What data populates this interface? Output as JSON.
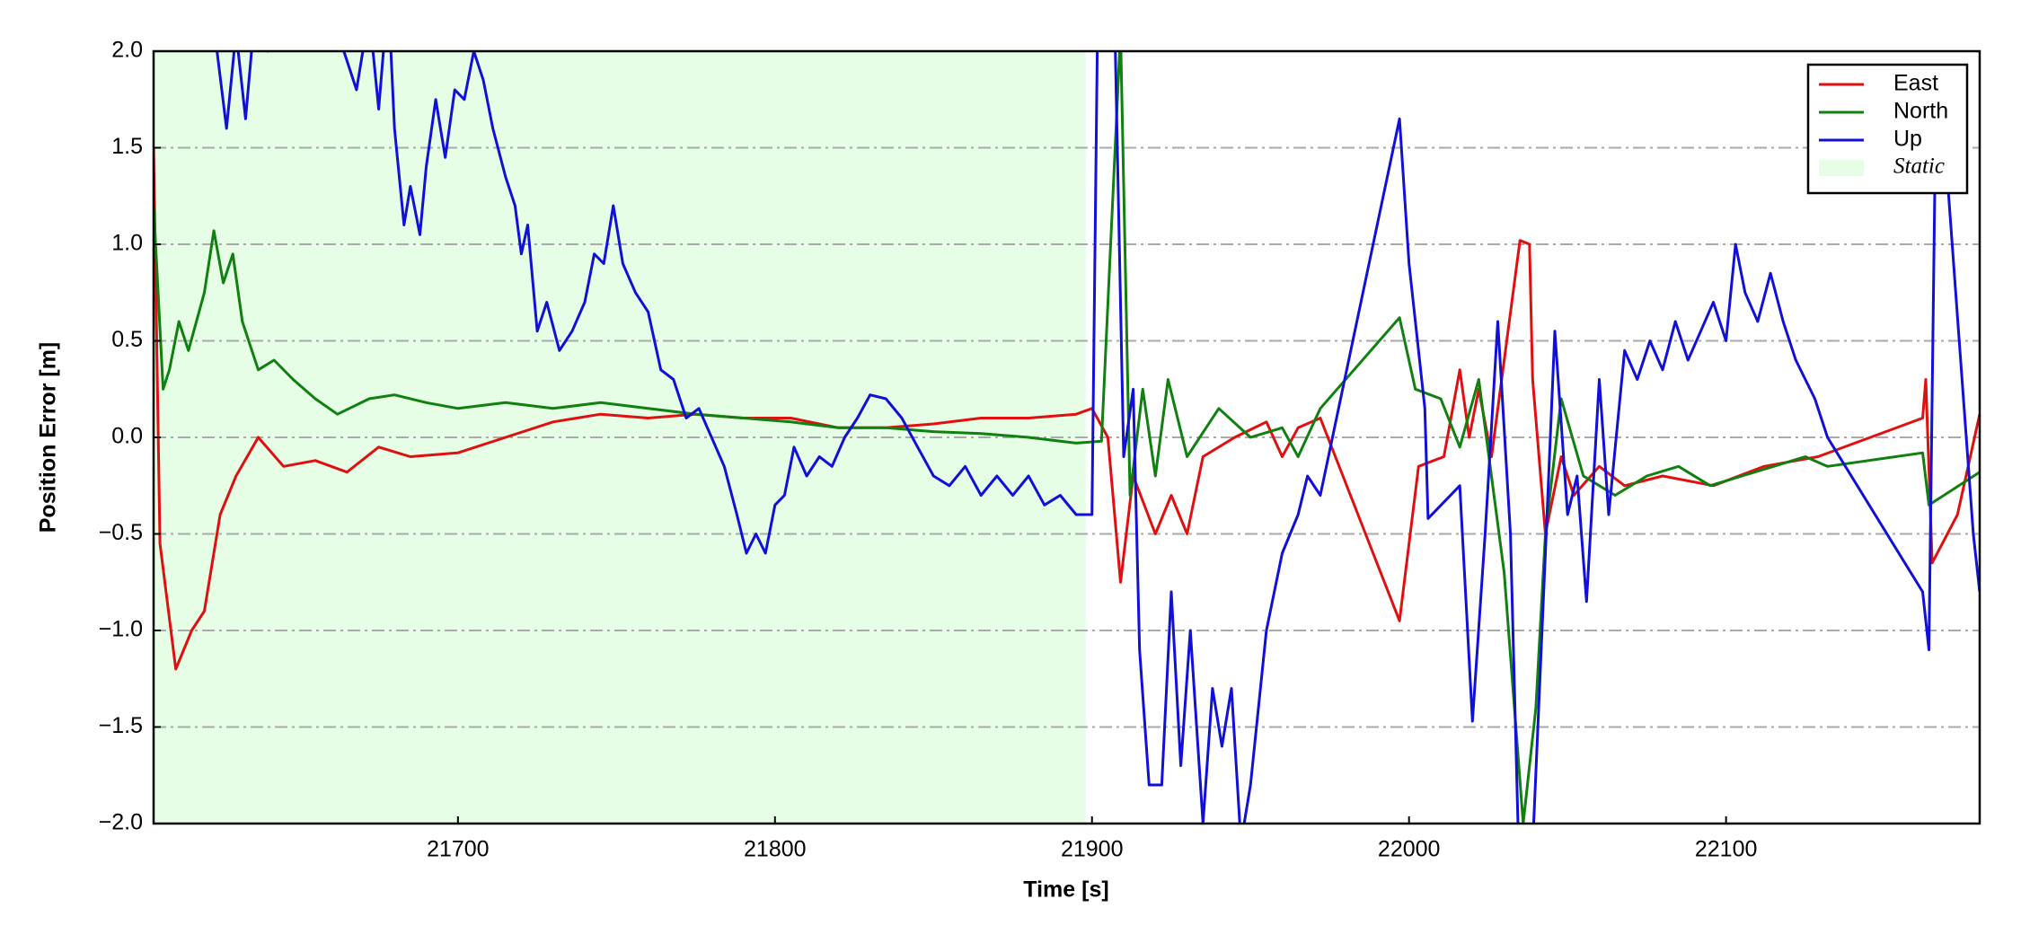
{
  "chart_data": {
    "type": "line",
    "xlabel": "Time [s]",
    "ylabel": "Position Error [m]",
    "xlim": [
      21604,
      22180
    ],
    "xticks": [
      21700,
      21800,
      21900,
      22000,
      22100
    ],
    "ylim": [
      -2.0,
      2.0
    ],
    "yticks": [
      {
        "value": -2.0,
        "label": "−2.0"
      },
      {
        "value": -1.5,
        "label": "−1.5"
      },
      {
        "value": -1.0,
        "label": "−1.0"
      },
      {
        "value": -0.5,
        "label": "−0.5"
      },
      {
        "value": 0,
        "label": "0.0"
      },
      0.5,
      {
        "value": 1,
        "label": "1.0"
      },
      1.5,
      {
        "value": 2,
        "label": "2.0"
      }
    ],
    "grid": "y",
    "legend": "upper right",
    "shaded_region": {
      "name": "Static",
      "x": [
        21604,
        21898
      ],
      "color": "#e6fde6"
    },
    "series": [
      {
        "name": "East",
        "color": "#e01010",
        "x": [
          21604,
          21606,
          21611,
          21616,
          21620,
          21625,
          21630,
          21637,
          21645,
          21655,
          21665,
          21675,
          21685,
          21700,
          21715,
          21730,
          21745,
          21760,
          21775,
          21790,
          21805,
          21820,
          21835,
          21850,
          21865,
          21880,
          21895,
          21900,
          21905,
          21909,
          21913,
          21920,
          21925,
          21930,
          21935,
          21945,
          21955,
          21960,
          21965,
          21972,
          21997,
          22003,
          22011,
          22016,
          22019,
          22022,
          22026,
          22035,
          22038,
          22039,
          22043,
          22048,
          22052,
          22060,
          22068,
          22080,
          22096,
          22112,
          22129,
          22162,
          22163,
          22165,
          22173,
          22180
        ],
        "values": [
          1.5,
          -0.55,
          -1.2,
          -1.0,
          -0.9,
          -0.4,
          -0.2,
          0.0,
          -0.15,
          -0.12,
          -0.18,
          -0.05,
          -0.1,
          -0.08,
          0.0,
          0.08,
          0.12,
          0.1,
          0.12,
          0.1,
          0.1,
          0.05,
          0.05,
          0.07,
          0.1,
          0.1,
          0.12,
          0.15,
          0.0,
          -0.75,
          -0.2,
          -0.5,
          -0.3,
          -0.5,
          -0.1,
          0.0,
          0.08,
          -0.1,
          0.05,
          0.1,
          -0.95,
          -0.15,
          -0.1,
          0.35,
          0.0,
          0.25,
          -0.1,
          1.02,
          1.0,
          0.3,
          -0.5,
          -0.1,
          -0.3,
          -0.15,
          -0.25,
          -0.2,
          -0.25,
          -0.15,
          -0.1,
          0.1,
          0.3,
          -0.65,
          -0.4,
          0.12
        ]
      },
      {
        "name": "North",
        "color": "#108010",
        "x": [
          21604,
          21607,
          21609,
          21612,
          21615,
          21620,
          21623,
          21626,
          21629,
          21632,
          21637,
          21642,
          21648,
          21655,
          21662,
          21672,
          21680,
          21690,
          21700,
          21715,
          21730,
          21745,
          21760,
          21775,
          21790,
          21805,
          21820,
          21835,
          21850,
          21865,
          21880,
          21895,
          21903,
          21909,
          21912,
          21916,
          21920,
          21924,
          21930,
          21940,
          21950,
          21960,
          21965,
          21972,
          21997,
          22002,
          22010,
          22016,
          22022,
          22030,
          22036,
          22040,
          22043,
          22048,
          22055,
          22065,
          22075,
          22085,
          22095,
          22105,
          22115,
          22125,
          22132,
          22162,
          22164,
          22180
        ],
        "values": [
          1.2,
          0.25,
          0.35,
          0.6,
          0.45,
          0.75,
          1.07,
          0.8,
          0.95,
          0.6,
          0.35,
          0.4,
          0.3,
          0.2,
          0.12,
          0.2,
          0.22,
          0.18,
          0.15,
          0.18,
          0.15,
          0.18,
          0.15,
          0.12,
          0.1,
          0.08,
          0.05,
          0.05,
          0.03,
          0.02,
          0.0,
          -0.03,
          -0.02,
          2.1,
          -0.3,
          0.25,
          -0.2,
          0.3,
          -0.1,
          0.15,
          0.0,
          0.05,
          -0.1,
          0.15,
          0.62,
          0.25,
          0.2,
          -0.05,
          0.3,
          -0.7,
          -2.0,
          -1.4,
          -0.5,
          0.2,
          -0.2,
          -0.3,
          -0.2,
          -0.15,
          -0.25,
          -0.2,
          -0.15,
          -0.1,
          -0.15,
          -0.08,
          -0.35,
          -0.18
        ]
      },
      {
        "name": "Up",
        "color": "#1010d8",
        "x": [
          21622,
          21624,
          21627,
          21630,
          21633,
          21636,
          21640,
          21645,
          21660,
          21664,
          21668,
          21672,
          21675,
          21678,
          21680,
          21683,
          21685,
          21688,
          21690,
          21693,
          21696,
          21699,
          21702,
          21705,
          21708,
          21711,
          21715,
          21718,
          21720,
          21722,
          21725,
          21728,
          21732,
          21736,
          21740,
          21743,
          21746,
          21749,
          21752,
          21756,
          21760,
          21764,
          21768,
          21772,
          21776,
          21780,
          21784,
          21788,
          21791,
          21794,
          21797,
          21800,
          21803,
          21806,
          21810,
          21814,
          21818,
          21822,
          21826,
          21830,
          21835,
          21840,
          21845,
          21850,
          21855,
          21860,
          21865,
          21870,
          21875,
          21880,
          21885,
          21890,
          21895,
          21900,
          21902,
          21907,
          21910,
          21913,
          21915,
          21918,
          21922,
          21925,
          21928,
          21931,
          21935,
          21938,
          21941,
          21944,
          21947,
          21950,
          21955,
          21960,
          21965,
          21968,
          21972,
          21997,
          22000,
          22005,
          22006,
          22016,
          22020,
          22024,
          22028,
          22032,
          22035,
          22038,
          22043,
          22046,
          22050,
          22053,
          22056,
          22060,
          22063,
          22068,
          22072,
          22076,
          22080,
          22084,
          22088,
          22092,
          22096,
          22100,
          22103,
          22106,
          22110,
          22114,
          22118,
          22122,
          22128,
          22132,
          22162,
          22164,
          22166,
          22170,
          22178,
          22180
        ],
        "values": [
          2.5,
          2.0,
          1.6,
          2.1,
          1.65,
          2.2,
          2.0,
          2.3,
          2.4,
          2.0,
          1.8,
          2.2,
          1.7,
          2.3,
          1.6,
          1.1,
          1.3,
          1.05,
          1.4,
          1.75,
          1.45,
          1.8,
          1.75,
          2.0,
          1.85,
          1.6,
          1.35,
          1.2,
          0.95,
          1.1,
          0.55,
          0.7,
          0.45,
          0.55,
          0.7,
          0.95,
          0.9,
          1.2,
          0.9,
          0.75,
          0.65,
          0.35,
          0.3,
          0.1,
          0.15,
          0.0,
          -0.15,
          -0.4,
          -0.6,
          -0.5,
          -0.6,
          -0.35,
          -0.3,
          -0.05,
          -0.2,
          -0.1,
          -0.15,
          0.0,
          0.1,
          0.22,
          0.2,
          0.1,
          -0.05,
          -0.2,
          -0.25,
          -0.15,
          -0.3,
          -0.2,
          -0.3,
          -0.2,
          -0.35,
          -0.3,
          -0.4,
          -0.4,
          2.5,
          2.3,
          -0.1,
          0.25,
          -1.1,
          -1.8,
          -1.8,
          -0.8,
          -1.7,
          -1.0,
          -2.0,
          -1.3,
          -1.6,
          -1.3,
          -2.1,
          -1.8,
          -1.0,
          -0.6,
          -0.4,
          -0.2,
          -0.3,
          1.65,
          0.9,
          0.15,
          -0.42,
          -0.25,
          -1.47,
          -0.5,
          0.6,
          -0.5,
          -2.4,
          -2.5,
          -0.6,
          0.55,
          -0.4,
          -0.2,
          -0.85,
          0.3,
          -0.4,
          0.45,
          0.3,
          0.5,
          0.35,
          0.6,
          0.4,
          0.55,
          0.7,
          0.5,
          1.0,
          0.75,
          0.6,
          0.85,
          0.6,
          0.4,
          0.2,
          0.0,
          -0.8,
          -1.1,
          1.5,
          1.3,
          -0.5,
          -0.8
        ]
      }
    ]
  }
}
